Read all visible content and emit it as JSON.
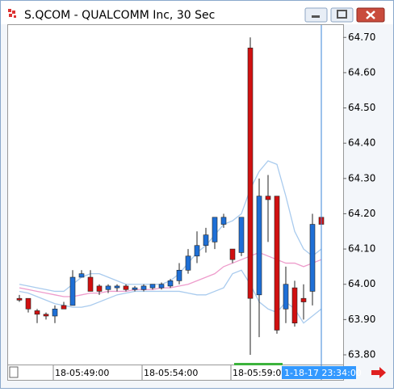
{
  "window_title": "S.QCOM - QUALCOMM Inc, 30 Sec",
  "chart_data": {
    "type": "candlestick",
    "categories": [
      null,
      null,
      null,
      null,
      "18-05:49:00",
      null,
      null,
      null,
      null,
      null,
      null,
      null,
      null,
      null,
      "18-05:54:00",
      null,
      null,
      null,
      null,
      null,
      null,
      null,
      null,
      null,
      "18-05:59:00",
      null,
      null,
      null,
      null,
      null,
      null,
      null,
      null,
      null,
      null
    ],
    "open": [
      63.96,
      63.96,
      63.925,
      63.915,
      63.91,
      63.94,
      63.94,
      64.02,
      64.02,
      63.995,
      63.985,
      63.99,
      63.995,
      63.985,
      63.985,
      63.99,
      63.99,
      63.995,
      64.01,
      64.04,
      64.08,
      64.11,
      64.12,
      64.17,
      64.1,
      64.09,
      64.67,
      63.97,
      64.25,
      64.25,
      63.93,
      63.99,
      63.96,
      63.98,
      64.19
    ],
    "high": [
      63.97,
      63.96,
      63.93,
      63.92,
      63.94,
      63.95,
      64.04,
      64.04,
      64.04,
      64.0,
      64.0,
      64.0,
      64.0,
      63.995,
      64.0,
      64.0,
      64.005,
      64.015,
      64.06,
      64.1,
      64.15,
      64.16,
      64.19,
      64.2,
      64.1,
      64.19,
      64.7,
      64.3,
      64.31,
      64.25,
      64.05,
      64.01,
      64.0,
      64.2,
      64.2
    ],
    "low": [
      63.95,
      63.92,
      63.89,
      63.9,
      63.89,
      63.93,
      63.94,
      64.02,
      63.98,
      63.97,
      63.975,
      63.98,
      63.98,
      63.98,
      63.98,
      63.985,
      63.985,
      63.99,
      64.0,
      64.03,
      64.06,
      64.09,
      64.1,
      64.16,
      64.06,
      64.08,
      63.8,
      63.85,
      64.12,
      63.86,
      63.89,
      63.88,
      63.9,
      63.94,
      64.17
    ],
    "close": [
      63.955,
      63.93,
      63.915,
      63.91,
      63.93,
      63.93,
      64.02,
      64.03,
      63.98,
      63.98,
      63.995,
      63.995,
      63.985,
      63.99,
      63.995,
      64.0,
      64.0,
      64.01,
      64.04,
      64.08,
      64.11,
      64.14,
      64.19,
      64.19,
      64.07,
      64.19,
      63.96,
      64.25,
      64.24,
      63.87,
      64.0,
      63.89,
      63.95,
      64.17,
      64.17
    ],
    "up_color": "#1e6fd6",
    "down_color": "#d01010",
    "overlays": [
      {
        "color": "#a9cbee",
        "values": [
          64.0,
          63.995,
          63.99,
          63.985,
          63.98,
          63.98,
          64.0,
          64.02,
          64.03,
          64.03,
          64.02,
          64.01,
          64.0,
          64.0,
          64.0,
          64.0,
          64.0,
          64.01,
          64.03,
          64.06,
          64.09,
          64.11,
          64.14,
          64.17,
          64.18,
          64.2,
          64.27,
          64.32,
          64.35,
          64.34,
          64.25,
          64.15,
          64.1,
          64.08,
          64.1
        ]
      },
      {
        "color": "#a9cbee",
        "values": [
          63.98,
          63.975,
          63.965,
          63.955,
          63.945,
          63.94,
          63.935,
          63.935,
          63.94,
          63.95,
          63.96,
          63.97,
          63.975,
          63.98,
          63.98,
          63.98,
          63.98,
          63.98,
          63.98,
          63.975,
          63.97,
          63.97,
          63.98,
          63.99,
          64.03,
          64.04,
          64.0,
          63.95,
          63.93,
          63.92,
          63.95,
          63.93,
          63.89,
          63.91,
          63.93
        ]
      },
      {
        "color": "#ee9ccc",
        "values": [
          63.99,
          63.985,
          63.98,
          63.975,
          63.97,
          63.965,
          63.965,
          63.97,
          63.975,
          63.975,
          63.98,
          63.98,
          63.98,
          63.985,
          63.985,
          63.985,
          63.99,
          63.99,
          63.995,
          64.0,
          64.01,
          64.02,
          64.03,
          64.05,
          64.06,
          64.07,
          64.08,
          64.09,
          64.08,
          64.07,
          64.06,
          64.06,
          64.05,
          64.06,
          64.07
        ]
      }
    ],
    "ylim": [
      63.7725,
      64.735
    ],
    "yticks": [
      {
        "value": 63.8,
        "label": "63.80"
      },
      {
        "value": 63.9,
        "label": "63.90"
      },
      {
        "value": 64.0,
        "label": "64.00"
      },
      {
        "value": 64.1,
        "label": "64.10"
      },
      {
        "value": 64.2,
        "label": "64.20"
      },
      {
        "value": 64.3,
        "label": "64.30"
      },
      {
        "value": 64.4,
        "label": "64.40"
      },
      {
        "value": 64.5,
        "label": "64.50"
      },
      {
        "value": 64.6,
        "label": "64.60"
      },
      {
        "value": 64.7,
        "label": "64.70"
      }
    ],
    "cursor_label": "1-18-17 23:34:00"
  }
}
